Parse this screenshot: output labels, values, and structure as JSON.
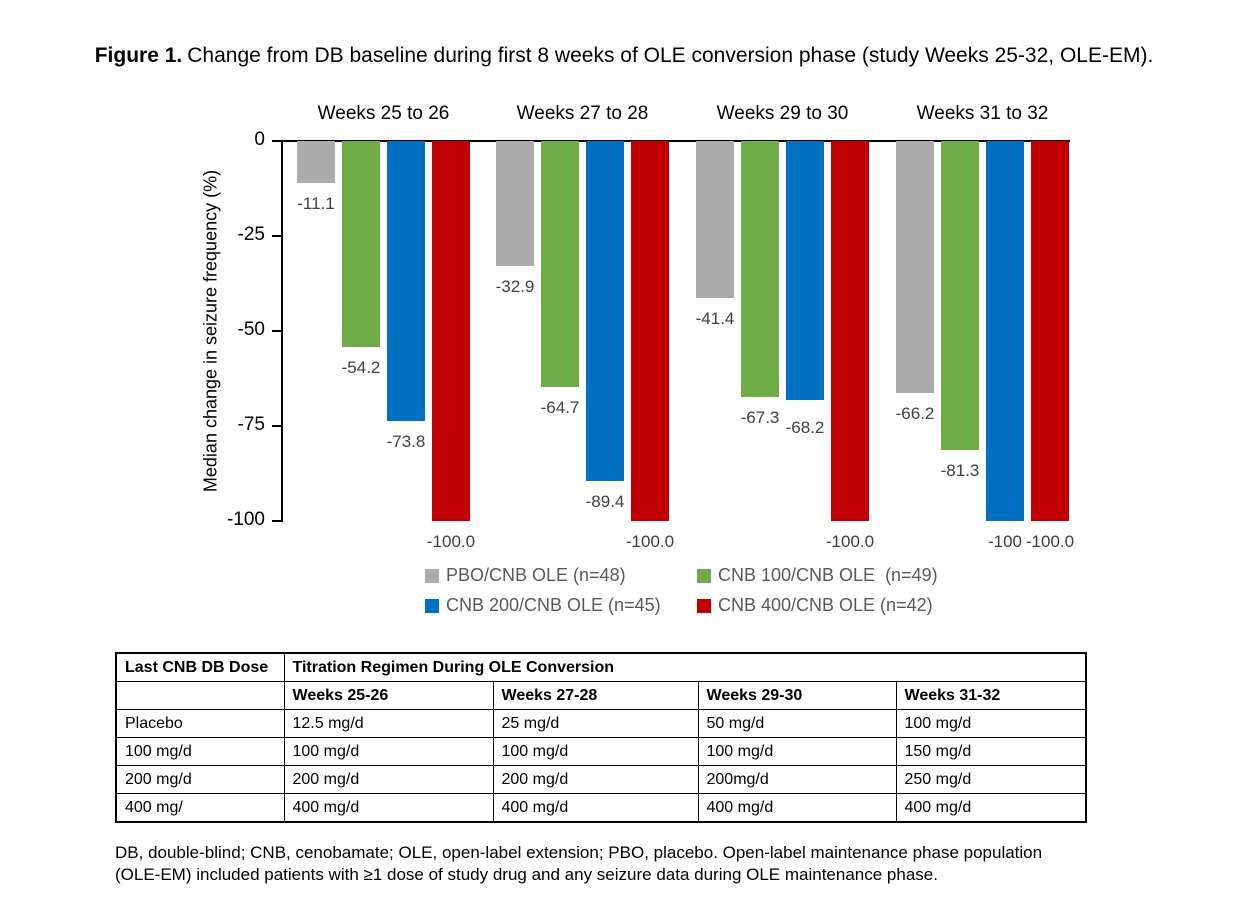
{
  "title": {
    "prefix": "Figure 1.",
    "text": "Change from DB baseline during first 8 weeks of OLE conversion phase (study Weeks 25-32, OLE-EM)."
  },
  "chart_data": {
    "type": "bar",
    "title": "",
    "xlabel": "",
    "ylabel": "Median change in seizure frequency (%)",
    "ylim": [
      0,
      -100
    ],
    "yticks": [
      0,
      -25,
      -50,
      -75,
      -100
    ],
    "ytick_labels": [
      "0",
      "-25",
      "-50",
      "-75",
      "-100"
    ],
    "grid": false,
    "legend_position": "bottom",
    "categories": [
      "Weeks 25 to 26",
      "Weeks 27 to 28",
      "Weeks 29 to 30",
      "Weeks 31 to 32"
    ],
    "series": [
      {
        "name": "PBO/CNB OLE (n=48)",
        "color": "#ABABAB",
        "values": [
          -11.1,
          -32.9,
          -41.4,
          -66.2
        ],
        "labels": [
          "-11.1",
          "-32.9",
          "-41.4",
          "-66.2"
        ],
        "label_dy": [
          0,
          0,
          0,
          0
        ]
      },
      {
        "name": "CNB 100/CNB OLE  (n=49)",
        "color": "#70AD47",
        "values": [
          -54.2,
          -64.7,
          -67.3,
          -81.3
        ],
        "labels": [
          "-54.2",
          "-64.7",
          "-67.3",
          "-81.3"
        ],
        "label_dy": [
          0,
          0,
          0,
          0
        ]
      },
      {
        "name": "CNB 200/CNB OLE (n=45)",
        "color": "#0070C0",
        "values": [
          -73.8,
          -89.4,
          -68.2,
          -100
        ],
        "labels": [
          "-73.8",
          "-89.4",
          "-68.2",
          "-100"
        ],
        "label_dy": [
          0,
          0,
          7,
          0
        ]
      },
      {
        "name": "CNB 400/CNB OLE (n=42)",
        "color": "#C00000",
        "values": [
          -100.0,
          -100.0,
          -100.0,
          -100.0
        ],
        "labels": [
          "-100.0",
          "-100.0",
          "-100.0",
          "-100.0"
        ],
        "label_dy": [
          0,
          0,
          0,
          0
        ]
      }
    ],
    "data_label_color": "#404040"
  },
  "table": {
    "header_row1": [
      "Last CNB DB Dose",
      "Titration Regimen During OLE Conversion"
    ],
    "header_row2": [
      "",
      "Weeks 25-26",
      "Weeks 27-28",
      "Weeks 29-30",
      "Weeks 31-32"
    ],
    "rows": [
      [
        "Placebo",
        "12.5 mg/d",
        "25 mg/d",
        "50 mg/d",
        "100 mg/d"
      ],
      [
        "100 mg/d",
        "100 mg/d",
        "100 mg/d",
        "100 mg/d",
        "150 mg/d"
      ],
      [
        "200 mg/d",
        "200 mg/d",
        "200 mg/d",
        "200mg/d",
        "250 mg/d"
      ],
      [
        "400 mg/",
        "400 mg/d",
        "400 mg/d",
        "400 mg/d",
        "400 mg/d"
      ]
    ]
  },
  "footnote": {
    "line1": "DB, double-blind; CNB, cenobamate; OLE, open-label extension; PBO, placebo. Open-label maintenance phase population",
    "line2": "(OLE-EM) included patients with ≥1 dose of study drug and any seizure data during OLE maintenance phase."
  }
}
